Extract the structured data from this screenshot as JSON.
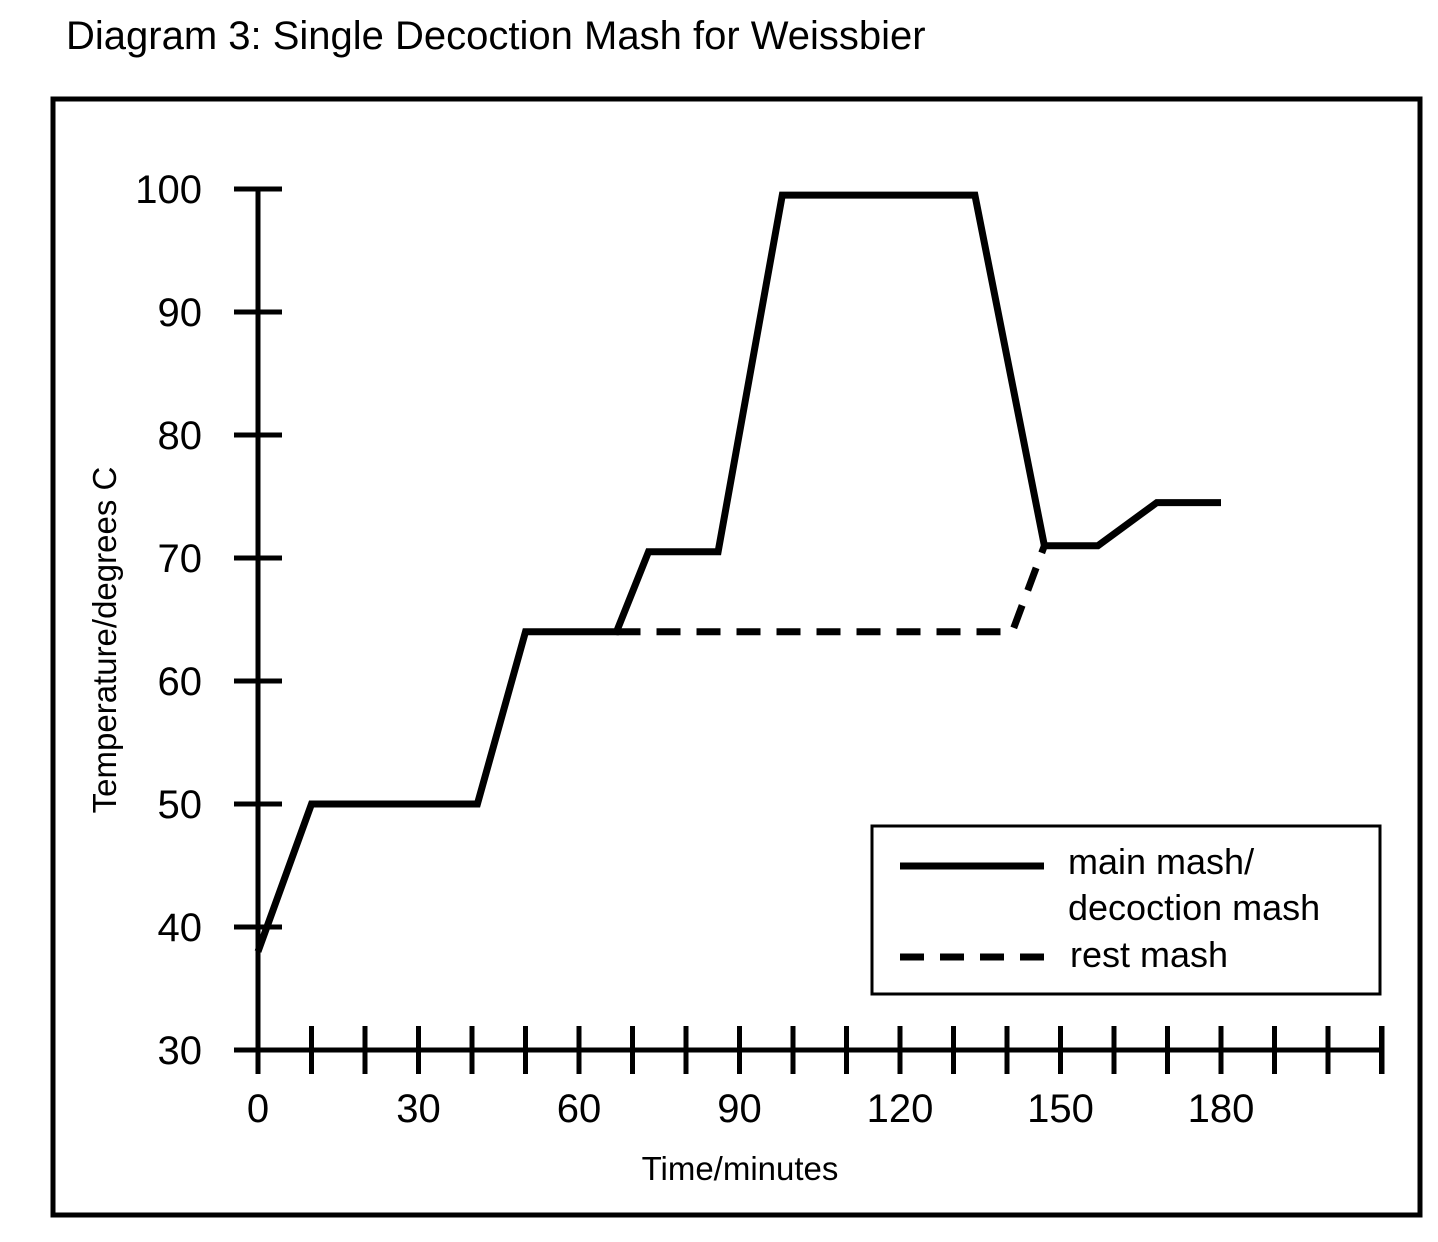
{
  "title": "Diagram 3: Single Decoction Mash for Weissbier",
  "chart_data": {
    "type": "line",
    "title": "Diagram 3: Single Decoction Mash for Weissbier",
    "xlabel": "Time/minutes",
    "ylabel": "Temperature/degrees C",
    "xlim": [
      0,
      210
    ],
    "ylim": [
      30,
      100
    ],
    "x_tick_labels": [
      "0",
      "30",
      "60",
      "90",
      "120",
      "150",
      "180"
    ],
    "x_tick_values": [
      0,
      30,
      60,
      90,
      120,
      150,
      180
    ],
    "x_minor_tick_step": 10,
    "y_tick_labels": [
      "30",
      "40",
      "50",
      "60",
      "70",
      "80",
      "90",
      "100"
    ],
    "y_tick_values": [
      30,
      40,
      50,
      60,
      70,
      80,
      90,
      100
    ],
    "grid": false,
    "legend_position": "bottom-right",
    "series": [
      {
        "name": "main mash/ decoction mash",
        "legend_lines": [
          "main mash/",
          "decoction mash"
        ],
        "style": "solid",
        "x": [
          0,
          10,
          41,
          50,
          67,
          73,
          86,
          98,
          134,
          147,
          157,
          168,
          180
        ],
        "y": [
          38,
          50,
          50,
          64,
          64,
          70.5,
          70.5,
          99.5,
          99.5,
          71,
          71,
          74.5,
          74.5
        ]
      },
      {
        "name": "rest mash",
        "legend_lines": [
          "rest mash"
        ],
        "style": "dashed",
        "x": [
          67,
          141,
          147
        ],
        "y": [
          64,
          64,
          71
        ]
      }
    ]
  }
}
